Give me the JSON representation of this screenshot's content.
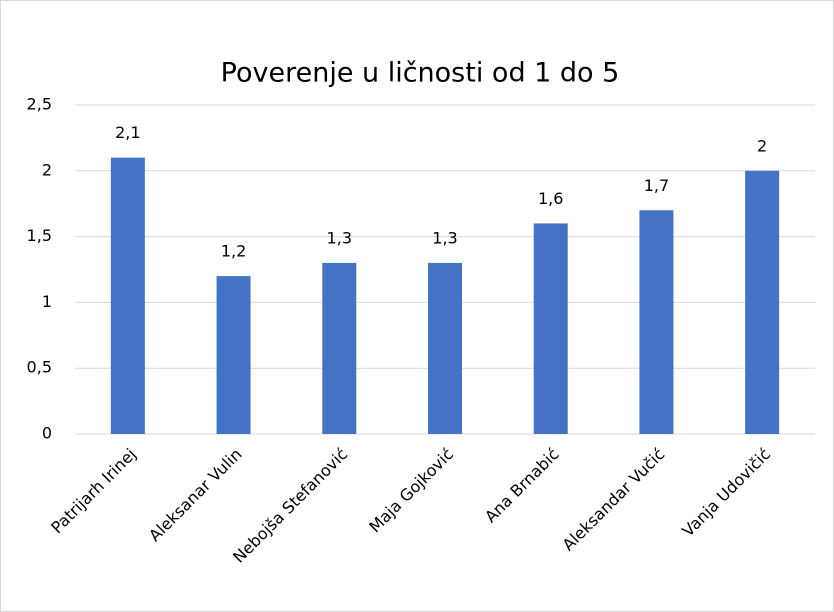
{
  "chart_data": {
    "type": "bar",
    "title": "Poverenje u ličnosti od 1 do 5",
    "categories": [
      "Patrijarh Irinej",
      "Aleksanar Vulin",
      "Nebojša Stefanović",
      "Maja Gojković",
      "Ana Brnabić",
      "Aleksandar Vučić",
      "Vanja Udovičić"
    ],
    "values": [
      2.1,
      1.2,
      1.3,
      1.3,
      1.6,
      1.7,
      2
    ],
    "value_labels": [
      "2,1",
      "1,2",
      "1,3",
      "1,3",
      "1,6",
      "1,7",
      "2"
    ],
    "color": "#4472c4",
    "ylim": [
      0,
      2.5
    ],
    "yticks": [
      0,
      {
        "value": 0.5,
        "label": "0,5"
      },
      1,
      {
        "value": 1.5,
        "label": "1,5"
      },
      2,
      {
        "value": 2.5,
        "label": "2,5"
      }
    ],
    "grid": true
  }
}
